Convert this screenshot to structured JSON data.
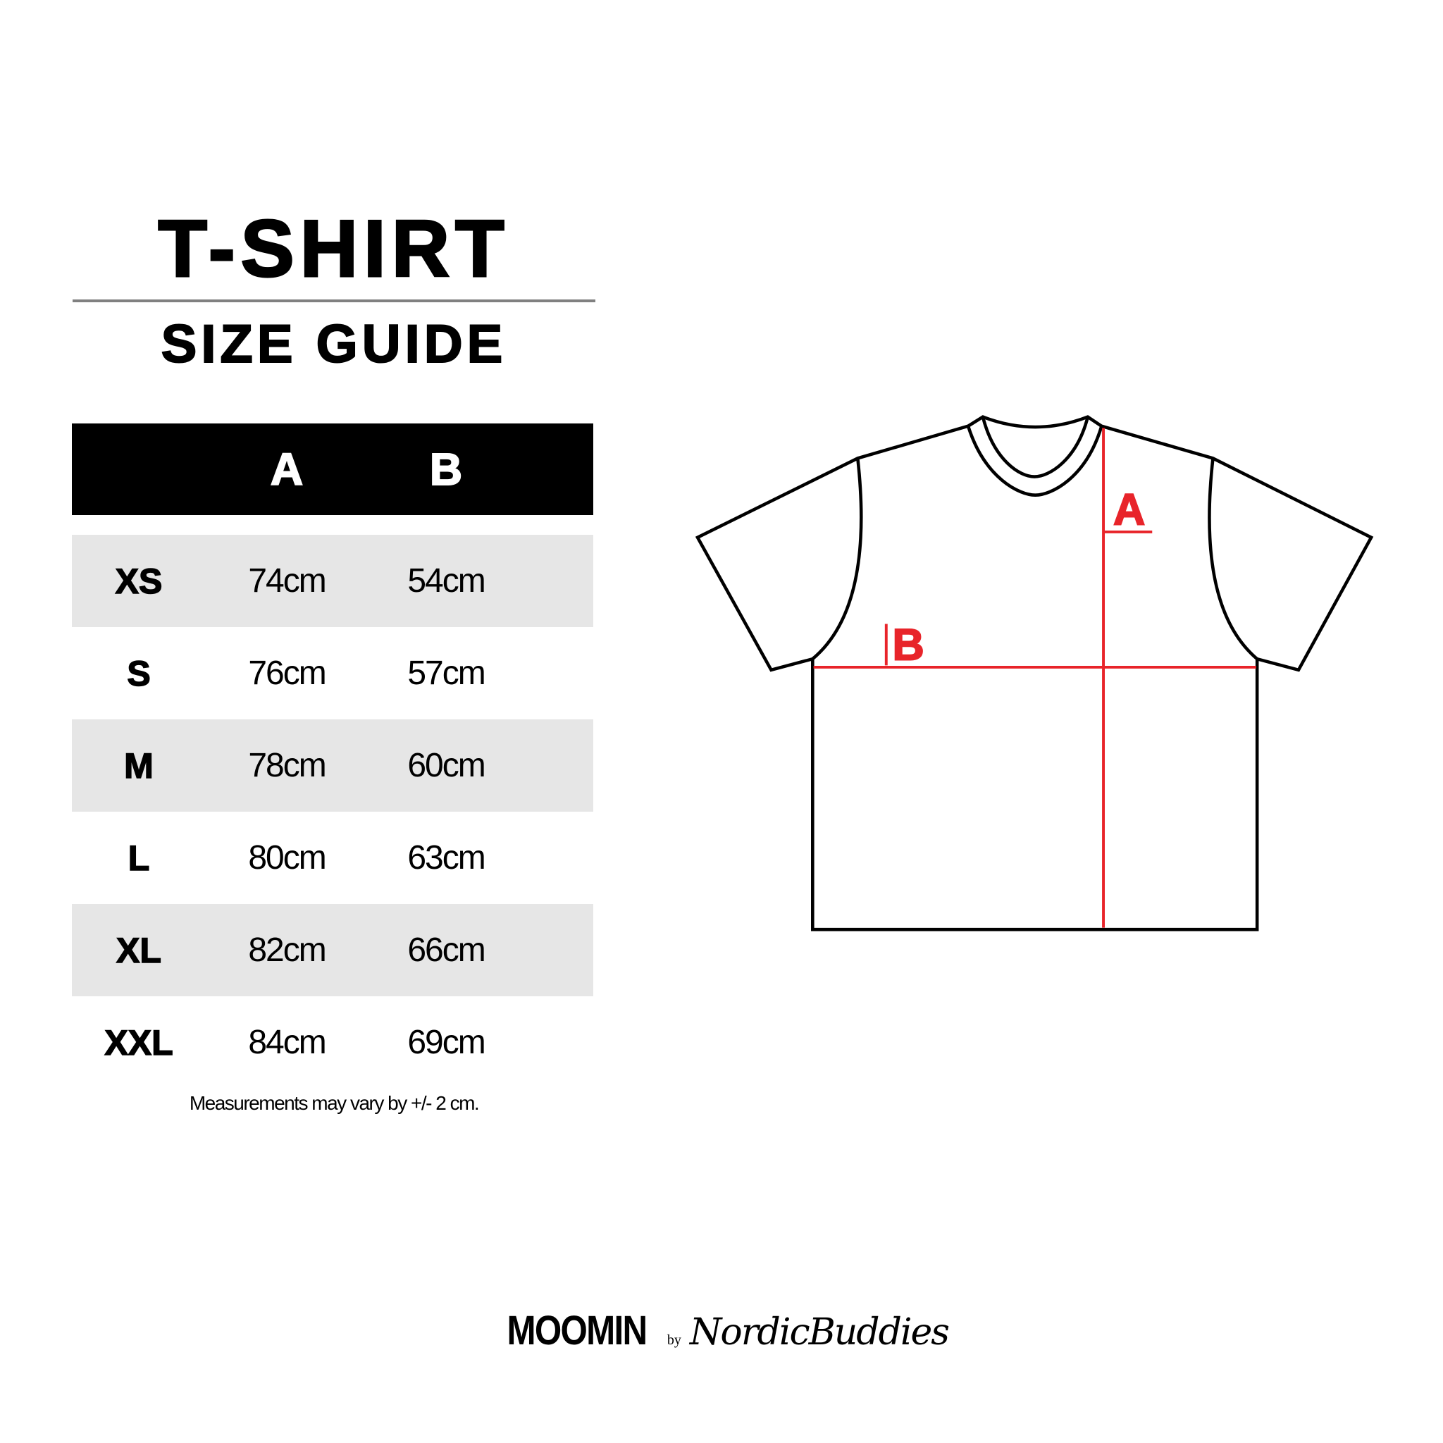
{
  "header": {
    "title": "T-SHIRT",
    "subtitle": "SIZE GUIDE"
  },
  "table": {
    "columns": [
      "",
      "A",
      "B"
    ],
    "rows": [
      {
        "size": "XS",
        "a": "74cm",
        "b": "54cm"
      },
      {
        "size": "S",
        "a": "76cm",
        "b": "57cm"
      },
      {
        "size": "M",
        "a": "78cm",
        "b": "60cm"
      },
      {
        "size": "L",
        "a": "80cm",
        "b": "63cm"
      },
      {
        "size": "XL",
        "a": "82cm",
        "b": "66cm"
      },
      {
        "size": "XXL",
        "a": "84cm",
        "b": "69cm"
      }
    ],
    "row_stripe_color": "#e6e6e6"
  },
  "note": "Measurements may vary by +/- 2 cm.",
  "diagram": {
    "label_a": "A",
    "label_b": "B",
    "measure_color": "#e8242a",
    "outline_color": "#000000"
  },
  "logo": {
    "brand": "MOOMIN",
    "by": "by",
    "partner": "NordicBuddies"
  }
}
